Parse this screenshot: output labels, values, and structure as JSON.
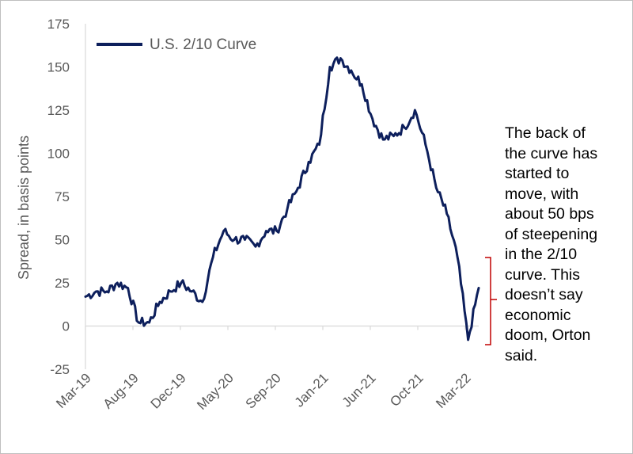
{
  "chart_data": {
    "type": "line",
    "title": "",
    "xlabel": "",
    "ylabel": "Spread, in basis points",
    "ylim": [
      -25,
      175
    ],
    "yticks": [
      -25,
      0,
      25,
      50,
      75,
      100,
      125,
      150,
      175
    ],
    "xticks": [
      "Mar-19",
      "Aug-19",
      "Dec-19",
      "May-20",
      "Sep-20",
      "Jan-21",
      "Jun-21",
      "Oct-21",
      "Mar-22"
    ],
    "grid": false,
    "legend_position": "top-left",
    "series": [
      {
        "name": "U.S. 2/10 Curve",
        "color": "#0d1f5c",
        "x": [
          "Mar-19",
          "Apr-19",
          "May-19",
          "Jun-19",
          "Jul-19",
          "Aug-19",
          "Sep-19",
          "Oct-19",
          "Nov-19",
          "Dec-19",
          "Jan-20",
          "Feb-20",
          "Mar-20",
          "Apr-20",
          "May-20",
          "Jun-20",
          "Jul-20",
          "Aug-20",
          "Sep-20",
          "Oct-20",
          "Nov-20",
          "Dec-20",
          "Jan-21",
          "Feb-21",
          "Mar-21",
          "Apr-21",
          "May-21",
          "Jun-21",
          "Jul-21",
          "Aug-21",
          "Sep-21",
          "Oct-21",
          "Nov-21",
          "Dec-21",
          "Jan-22",
          "Feb-22",
          "Mar-22",
          "Apr-22"
        ],
        "values": [
          17,
          20,
          20,
          25,
          22,
          2,
          2,
          14,
          20,
          25,
          20,
          14,
          40,
          55,
          50,
          50,
          46,
          55,
          55,
          68,
          80,
          95,
          105,
          150,
          155,
          148,
          140,
          120,
          108,
          110,
          115,
          125,
          105,
          80,
          65,
          40,
          -8,
          22
        ]
      }
    ]
  },
  "annotation": {
    "text": "The back of\nthe curve has\nstarted to\nmove, with\nabout 50 bps\nof steepening\nin the 2/10\ncurve. This\ndoesn’t say\neconomic\ndoom, Orton\nsaid."
  }
}
